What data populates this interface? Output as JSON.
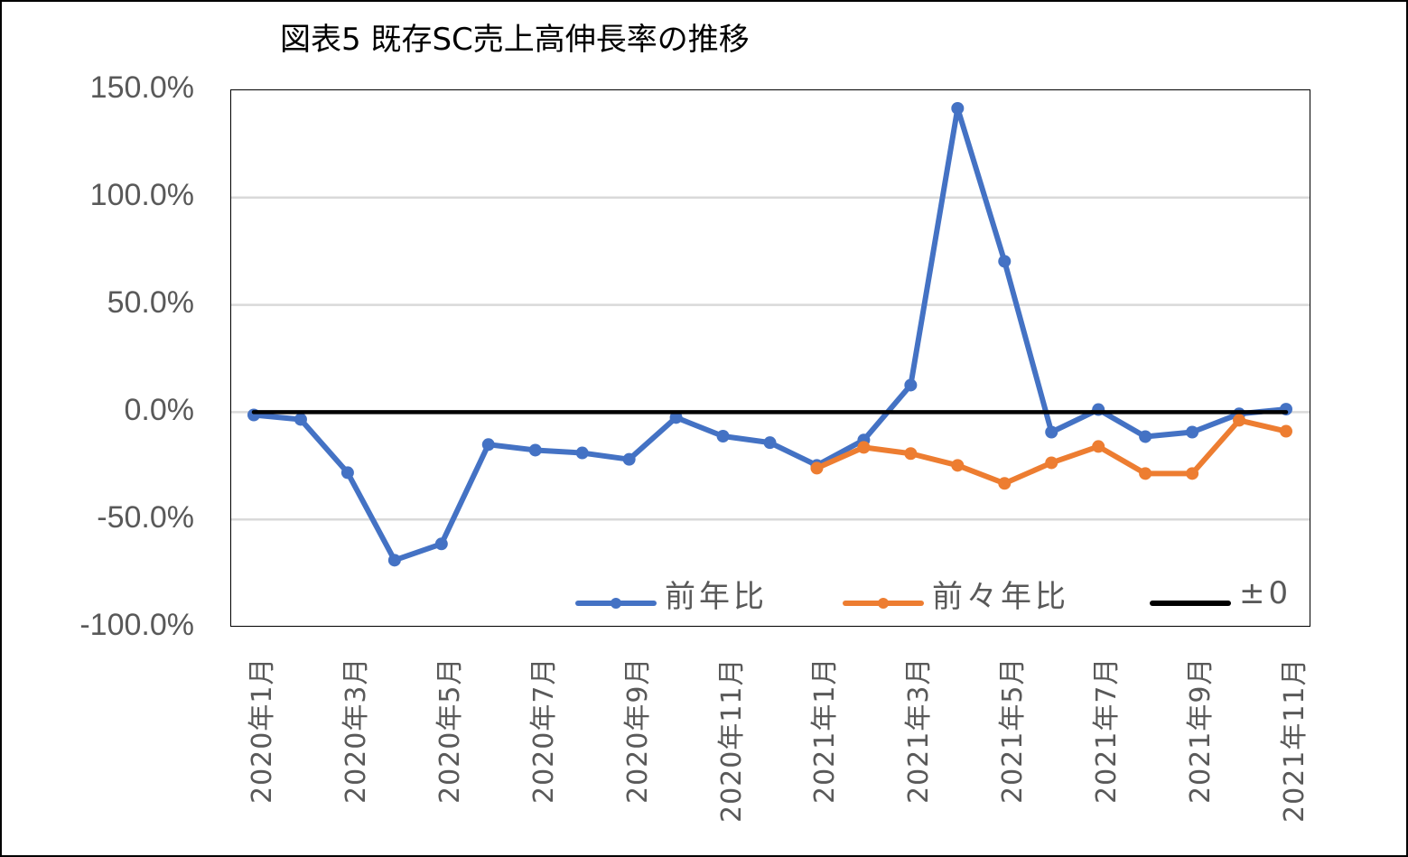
{
  "title": "図表5 既存SC売上高伸長率の推移",
  "colors": {
    "yoy": "#4472C4",
    "two_year": "#ED7D31",
    "zero": "#000000",
    "grid": "#D9D9D9",
    "tick_text": "#595959"
  },
  "y_axis": {
    "ticks": [
      "150.0%",
      "100.0%",
      "50.0%",
      "0.0%",
      "-50.0%",
      "-100.0%"
    ]
  },
  "x_axis": {
    "tick_labels": [
      "2020年1月",
      "2020年3月",
      "2020年5月",
      "2020年7月",
      "2020年9月",
      "2020年11月",
      "2021年1月",
      "2021年3月",
      "2021年5月",
      "2021年7月",
      "2021年9月",
      "2021年11月"
    ]
  },
  "legend": {
    "items": [
      {
        "label": "前年比"
      },
      {
        "label": "前々年比"
      },
      {
        "label": "±0"
      }
    ]
  },
  "chart_data": {
    "type": "line",
    "title": "図表5 既存SC売上高伸長率の推移",
    "xlabel": "",
    "ylabel": "",
    "ylim": [
      -100,
      150
    ],
    "yticks": [
      -100,
      -50,
      0,
      50,
      100,
      150
    ],
    "ytick_format": "0.0%",
    "grid": "horizontal",
    "legend_position": "inside-bottom",
    "x": [
      "2020年1月",
      "2020年2月",
      "2020年3月",
      "2020年4月",
      "2020年5月",
      "2020年6月",
      "2020年7月",
      "2020年8月",
      "2020年9月",
      "2020年10月",
      "2020年11月",
      "2020年12月",
      "2021年1月",
      "2021年2月",
      "2021年3月",
      "2021年4月",
      "2021年5月",
      "2021年6月",
      "2021年7月",
      "2021年8月",
      "2021年9月",
      "2021年10月",
      "2021年11月"
    ],
    "series": [
      {
        "name": "前年比",
        "color": "#4472C4",
        "marker": "circle",
        "values": [
          -1.3,
          -3.4,
          -28.2,
          -69.0,
          -61.4,
          -15.1,
          -17.7,
          -19.0,
          -22.0,
          -2.5,
          -11.2,
          -14.2,
          -24.8,
          -13.0,
          12.6,
          141.6,
          70.3,
          -9.3,
          1.2,
          -11.4,
          -9.3,
          -0.8,
          1.4
        ]
      },
      {
        "name": "前々年比",
        "color": "#ED7D31",
        "marker": "circle",
        "values": [
          null,
          null,
          null,
          null,
          null,
          null,
          null,
          null,
          null,
          null,
          null,
          null,
          -26.1,
          -16.4,
          -19.3,
          -24.8,
          -33.2,
          -23.6,
          -16.0,
          -28.6,
          -28.6,
          -3.8,
          -8.9
        ]
      },
      {
        "name": "±0",
        "color": "#000000",
        "marker": "none",
        "values": [
          0,
          0,
          0,
          0,
          0,
          0,
          0,
          0,
          0,
          0,
          0,
          0,
          0,
          0,
          0,
          0,
          0,
          0,
          0,
          0,
          0,
          0,
          0
        ]
      }
    ]
  }
}
